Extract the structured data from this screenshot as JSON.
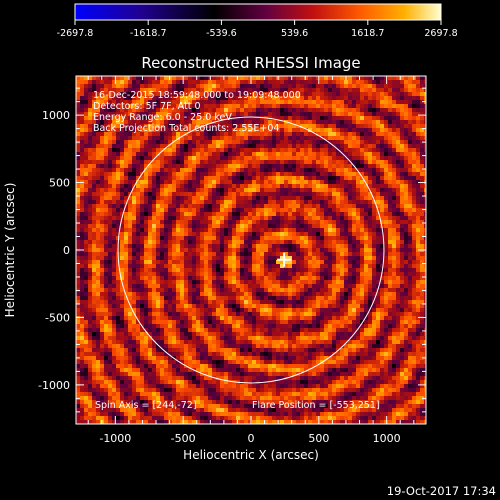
{
  "chart_data": {
    "type": "heatmap",
    "title": "Reconstructed RHESSI Image",
    "xlabel": "Heliocentric X (arcsec)",
    "ylabel": "Heliocentric Y (arcsec)",
    "xlim": [
      -1290,
      1290
    ],
    "ylim": [
      -1290,
      1290
    ],
    "xticks": [
      -1000,
      -500,
      0,
      500,
      1000
    ],
    "yticks": [
      -1000,
      -500,
      0,
      500,
      1000
    ],
    "xtick_labels": [
      "-1000",
      "-500",
      "0",
      "500",
      "1000"
    ],
    "ytick_labels": [
      "-1000",
      "-500",
      "0",
      "500",
      "1000"
    ],
    "colorbar": {
      "min": -2697.8,
      "max": 2697.8,
      "tick_values": [
        -2697.8,
        -1618.7,
        -539.6,
        539.6,
        1618.7,
        2697.8
      ],
      "tick_labels": [
        "-2697.8",
        "-1618.7",
        "-539.6",
        "539.6",
        "1618.7",
        "2697.8"
      ],
      "colormap": [
        "#0000ff",
        "#200080",
        "#000000",
        "#5a0040",
        "#b01010",
        "#ff5000",
        "#ffb000",
        "#ffffc0"
      ]
    },
    "annotations": [
      "16-Dec-2015 18:59:48.000 to 19:09:48.000",
      "Detectors: 5F 7F, Att 0",
      "Energy Range: 6.0 - 25.0 keV",
      "Back Projection   Total counts: 2.55E+04"
    ],
    "spin_axis_text": "Spin Axis = [244,-72]",
    "flare_position_text": "Flare Position = [-553,251]",
    "solar_limb": {
      "center": [
        0,
        0
      ],
      "radius": 980
    },
    "source_marker": [
      244,
      -72
    ],
    "grid": false
  },
  "footer": {
    "timestamp": "19-Oct-2017 17:34"
  }
}
